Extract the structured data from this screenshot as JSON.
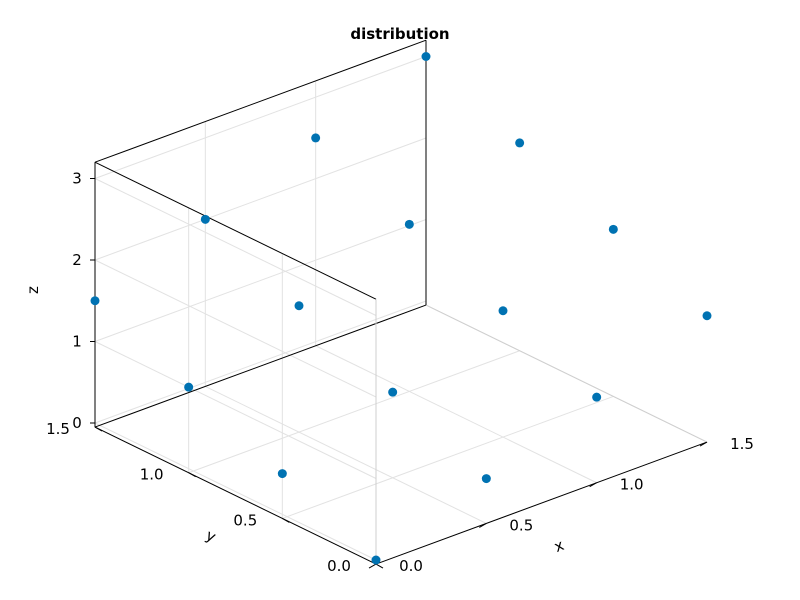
{
  "chart_data": {
    "type": "scatter",
    "title": "distribution",
    "xlabel": "x",
    "ylabel": "y",
    "zlabel": "z",
    "xlim": [
      0,
      1.5
    ],
    "ylim": [
      0,
      1.5
    ],
    "zlim": [
      0,
      3
    ],
    "xticks": [
      0.0,
      0.5,
      1.0,
      1.5
    ],
    "yticks": [
      0.0,
      0.5,
      1.0,
      1.5
    ],
    "zticks": [
      0,
      1,
      2,
      3
    ],
    "xtick_labels": [
      "0.0",
      "0.5",
      "1.0",
      "1.5"
    ],
    "ytick_labels": [
      "0.0",
      "0.5",
      "1.0",
      "1.5"
    ],
    "ztick_labels": [
      "0",
      "1",
      "2",
      "3"
    ],
    "grid": true,
    "marker_color": "#0072b2",
    "points": [
      {
        "x": 0.0,
        "y": 0.0,
        "z": 0.0
      },
      {
        "x": 0.0,
        "y": 0.5,
        "z": 0.5
      },
      {
        "x": 0.0,
        "y": 1.0,
        "z": 1.0
      },
      {
        "x": 0.0,
        "y": 1.5,
        "z": 1.5
      },
      {
        "x": 0.5,
        "y": 0.0,
        "z": 0.5
      },
      {
        "x": 0.5,
        "y": 0.5,
        "z": 1.0
      },
      {
        "x": 0.5,
        "y": 1.0,
        "z": 1.5
      },
      {
        "x": 0.5,
        "y": 1.5,
        "z": 2.0
      },
      {
        "x": 1.0,
        "y": 0.0,
        "z": 1.0
      },
      {
        "x": 1.0,
        "y": 0.5,
        "z": 1.5
      },
      {
        "x": 1.0,
        "y": 1.0,
        "z": 2.0
      },
      {
        "x": 1.0,
        "y": 1.5,
        "z": 2.5
      },
      {
        "x": 1.5,
        "y": 0.0,
        "z": 1.5
      },
      {
        "x": 1.5,
        "y": 0.5,
        "z": 2.0
      },
      {
        "x": 1.5,
        "y": 1.0,
        "z": 2.5
      },
      {
        "x": 1.5,
        "y": 1.5,
        "z": 3.0
      }
    ]
  }
}
